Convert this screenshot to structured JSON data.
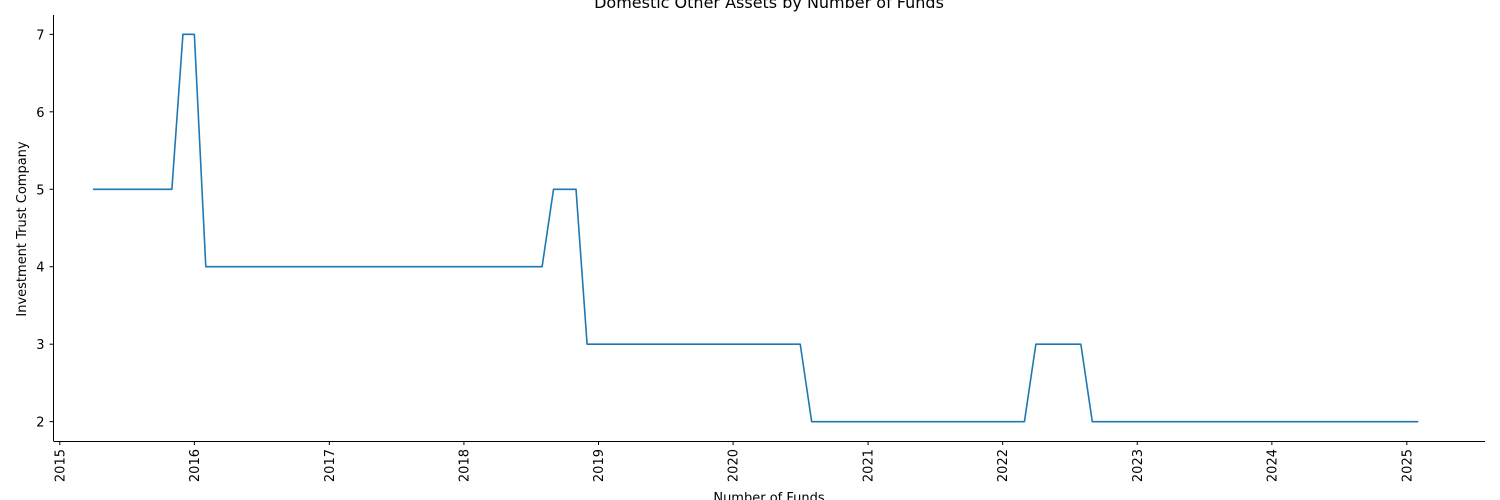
{
  "chart_data": {
    "type": "line",
    "title": "Domestic Other Assets by Number of Funds",
    "xlabel": "Number of Funds",
    "ylabel": "Investment Trust Company",
    "xlim": [
      "2014-12-15",
      "2025-08-01"
    ],
    "ylim": [
      1.75,
      7.25
    ],
    "x_ticks": [
      "2015",
      "2016",
      "2017",
      "2018",
      "2019",
      "2020",
      "2021",
      "2022",
      "2023",
      "2024",
      "2025"
    ],
    "y_ticks": [
      2,
      3,
      4,
      5,
      6,
      7
    ],
    "grid": false,
    "legend": "none",
    "line_color": "#1f77b4",
    "series": [
      {
        "x": [
          "2015-04",
          "2015-11",
          "2015-12",
          "2016-01",
          "2016-02",
          "2018-08",
          "2018-09",
          "2018-10",
          "2018-11",
          "2018-12",
          "2020-07",
          "2020-08",
          "2022-03",
          "2022-04",
          "2022-05",
          "2022-06",
          "2022-07",
          "2022-08",
          "2022-09",
          "2025-02"
        ],
        "y": [
          5,
          5,
          7,
          7,
          4,
          4,
          5,
          5,
          5,
          3,
          3,
          2,
          2,
          3,
          3,
          3,
          3,
          3,
          2,
          2
        ]
      }
    ]
  }
}
